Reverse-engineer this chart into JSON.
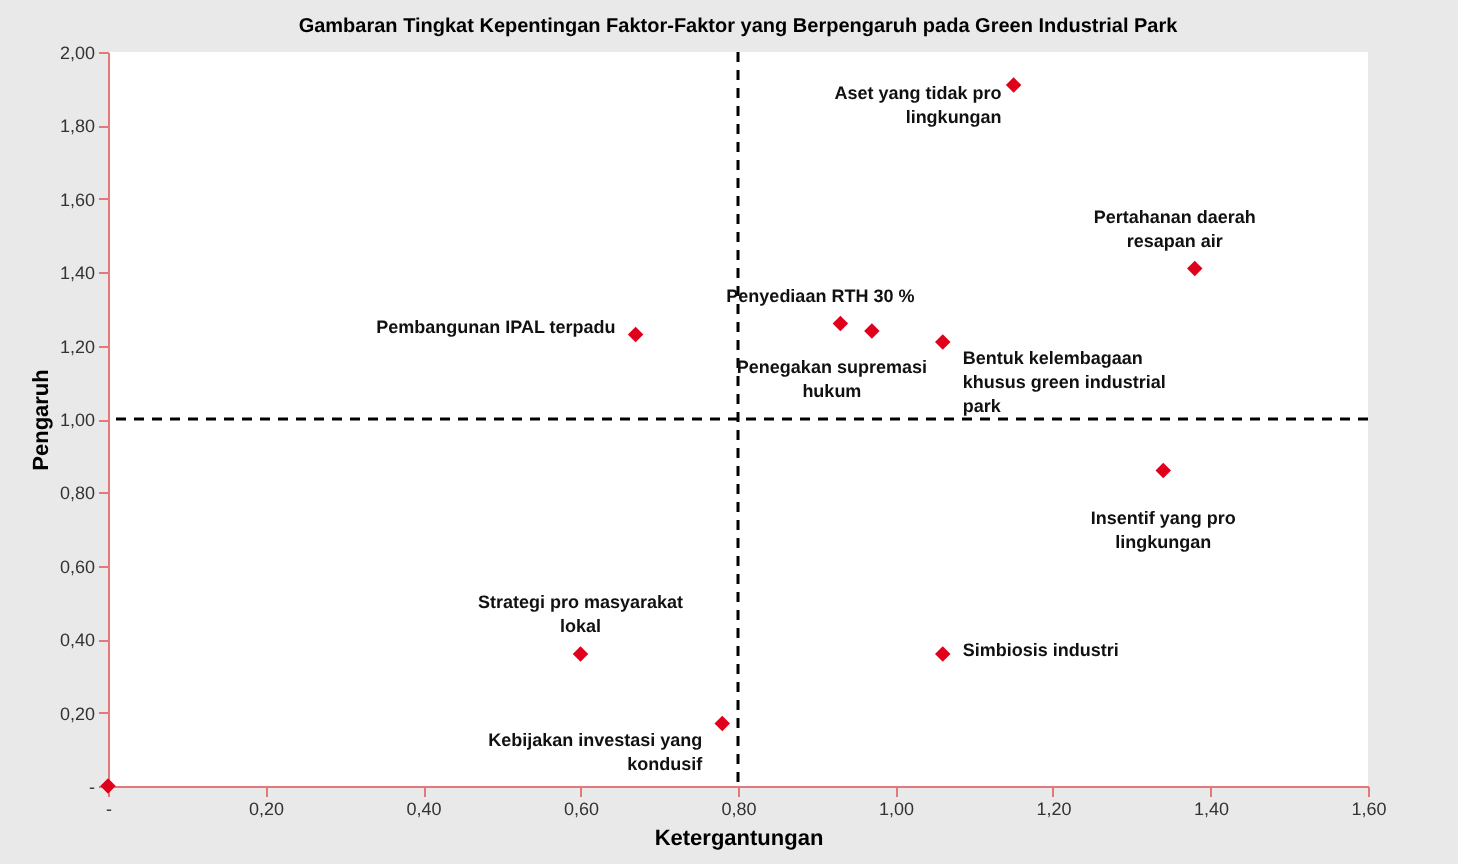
{
  "chart_data": {
    "type": "scatter",
    "title": "Gambaran Tingkat Kepentingan Faktor-Faktor yang Berpengaruh pada Green Industrial Park",
    "xlabel": "Ketergantungan",
    "ylabel": "Pengaruh",
    "x": [
      0,
      1.15,
      1.38,
      0.67,
      0.93,
      0.97,
      1.06,
      1.34,
      1.06,
      0.6,
      0.78
    ],
    "series": [
      {
        "color": "#e0001b",
        "values": [
          0,
          1.91,
          1.41,
          1.23,
          1.26,
          1.24,
          1.21,
          0.86,
          0.36,
          0.36,
          0.17
        ]
      }
    ],
    "marker": "diamond",
    "grid": false,
    "xlim": [
      0,
      1.6
    ],
    "ylim": [
      0,
      2.0
    ],
    "xticks": [
      {
        "value": 0,
        "label": "-"
      },
      {
        "value": 0.2,
        "label": "0,20"
      },
      {
        "value": 0.4,
        "label": "0,40"
      },
      {
        "value": 0.6,
        "label": "0,60"
      },
      {
        "value": 0.8,
        "label": "0,80"
      },
      {
        "value": 1.0,
        "label": "1,00"
      },
      {
        "value": 1.2,
        "label": "1,20"
      },
      {
        "value": 1.4,
        "label": "1,40"
      },
      {
        "value": 1.6,
        "label": "1,60"
      }
    ],
    "yticks": [
      {
        "value": 0,
        "label": "-"
      },
      {
        "value": 0.2,
        "label": "0,20"
      },
      {
        "value": 0.4,
        "label": "0,40"
      },
      {
        "value": 0.6,
        "label": "0,60"
      },
      {
        "value": 0.8,
        "label": "0,80"
      },
      {
        "value": 1.0,
        "label": "1,00"
      },
      {
        "value": 1.2,
        "label": "1,20"
      },
      {
        "value": 1.4,
        "label": "1,40"
      },
      {
        "value": 1.6,
        "label": "1,60"
      },
      {
        "value": 1.8,
        "label": "1,80"
      },
      {
        "value": 2.0,
        "label": "2,00"
      }
    ],
    "ref_lines": [
      {
        "axis": "x",
        "value": 0.8,
        "color": "#000000",
        "line_style": "dashed"
      },
      {
        "axis": "y",
        "value": 1.0,
        "color": "#000000",
        "line_style": "dashed"
      }
    ],
    "annotations": [
      {
        "text": "Aset yang tidak pro lingkungan",
        "x": 1.15,
        "y": 1.91
      },
      {
        "text": "Pertahanan daerah resapan air",
        "x": 1.38,
        "y": 1.41
      },
      {
        "text": "Pembangunan IPAL terpadu",
        "x": 0.67,
        "y": 1.23
      },
      {
        "text": "Penyediaan RTH 30 %",
        "x": 0.93,
        "y": 1.26
      },
      {
        "text": "Penegakan supremasi hukum",
        "x": 0.97,
        "y": 1.24
      },
      {
        "text": "Bentuk kelembagaan khusus green industrial park",
        "x": 1.06,
        "y": 1.21
      },
      {
        "text": "Insentif yang pro lingkungan",
        "x": 1.34,
        "y": 0.86
      },
      {
        "text": "Simbiosis industri",
        "x": 1.06,
        "y": 0.36
      },
      {
        "text": "Strategi pro masyarakat lokal",
        "x": 0.6,
        "y": 0.36
      },
      {
        "text": "Kebijakan investasi yang kondusif",
        "x": 0.78,
        "y": 0.17
      }
    ]
  }
}
